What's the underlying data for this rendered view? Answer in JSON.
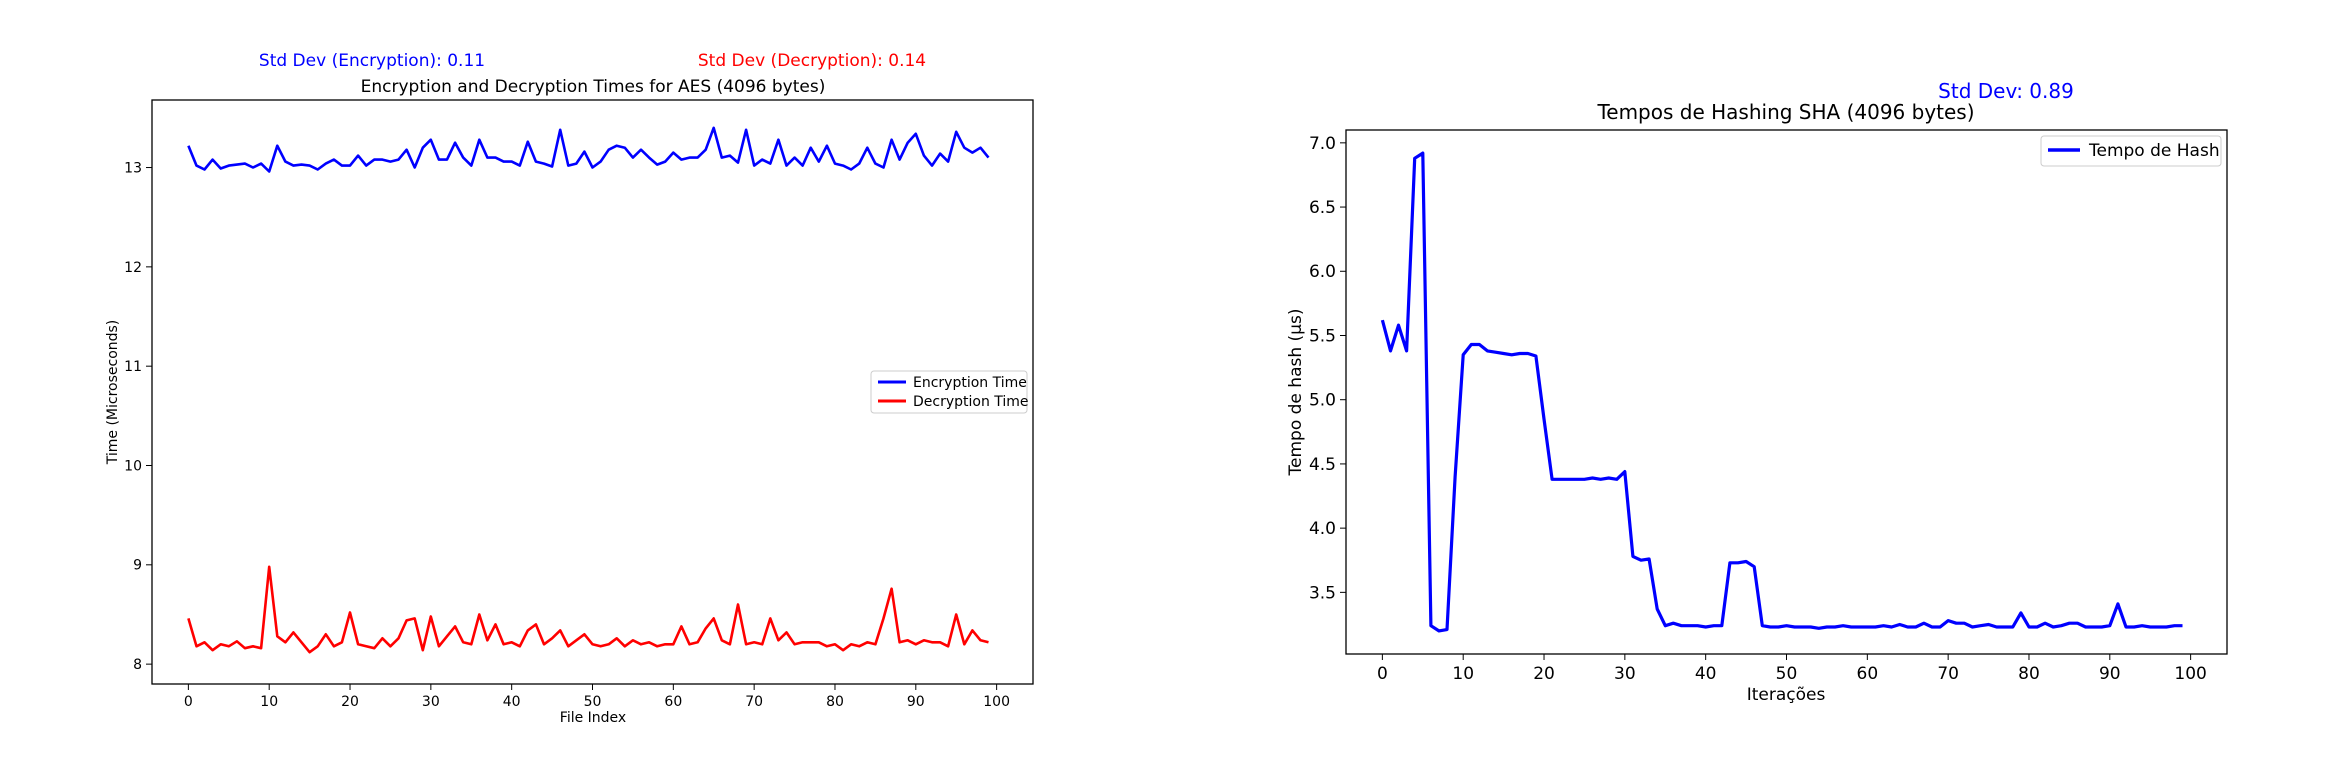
{
  "chart_data": [
    {
      "type": "line",
      "title": "Encryption and Decryption Times for AES (4096 bytes)",
      "annotations": [
        {
          "text": "Std Dev (Encryption): 0.11",
          "color": "#0000ff"
        },
        {
          "text": "Std Dev (Decryption): 0.14",
          "color": "#ff0000"
        }
      ],
      "xlabel": "File Index",
      "ylabel": "Time (Microseconds)",
      "xlim": [
        -4.5,
        104.5
      ],
      "ylim": [
        7.8,
        13.68
      ],
      "xticks": [
        0,
        10,
        20,
        30,
        40,
        50,
        60,
        70,
        80,
        90,
        100
      ],
      "yticks": [
        8,
        9,
        10,
        11,
        12,
        13
      ],
      "grid": false,
      "legend": "center-right",
      "x": [
        0,
        1,
        2,
        3,
        4,
        5,
        6,
        7,
        8,
        9,
        10,
        11,
        12,
        13,
        14,
        15,
        16,
        17,
        18,
        19,
        20,
        21,
        22,
        23,
        24,
        25,
        26,
        27,
        28,
        29,
        30,
        31,
        32,
        33,
        34,
        35,
        36,
        37,
        38,
        39,
        40,
        41,
        42,
        43,
        44,
        45,
        46,
        47,
        48,
        49,
        50,
        51,
        52,
        53,
        54,
        55,
        56,
        57,
        58,
        59,
        60,
        61,
        62,
        63,
        64,
        65,
        66,
        67,
        68,
        69,
        70,
        71,
        72,
        73,
        74,
        75,
        76,
        77,
        78,
        79,
        80,
        81,
        82,
        83,
        84,
        85,
        86,
        87,
        88,
        89,
        90,
        91,
        92,
        93,
        94,
        95,
        96,
        97,
        98,
        99
      ],
      "series": [
        {
          "name": "Encryption Time",
          "color": "#0000ff",
          "values": [
            13.22,
            13.02,
            12.98,
            13.08,
            12.99,
            13.02,
            13.03,
            13.04,
            13.0,
            13.04,
            12.96,
            13.22,
            13.06,
            13.02,
            13.03,
            13.02,
            12.98,
            13.04,
            13.08,
            13.02,
            13.02,
            13.12,
            13.02,
            13.08,
            13.08,
            13.06,
            13.08,
            13.18,
            13.0,
            13.2,
            13.28,
            13.08,
            13.08,
            13.25,
            13.1,
            13.02,
            13.28,
            13.1,
            13.1,
            13.06,
            13.06,
            13.02,
            13.26,
            13.06,
            13.04,
            13.01,
            13.38,
            13.02,
            13.04,
            13.16,
            13.0,
            13.06,
            13.18,
            13.22,
            13.2,
            13.1,
            13.18,
            13.1,
            13.03,
            13.06,
            13.15,
            13.08,
            13.1,
            13.1,
            13.18,
            13.4,
            13.1,
            13.12,
            13.05,
            13.38,
            13.02,
            13.08,
            13.04,
            13.28,
            13.02,
            13.1,
            13.02,
            13.2,
            13.06,
            13.22,
            13.04,
            13.02,
            12.98,
            13.04,
            13.2,
            13.04,
            13.0,
            13.28,
            13.08,
            13.25,
            13.34,
            13.12,
            13.02,
            13.14,
            13.06,
            13.36,
            13.2,
            13.15,
            13.2,
            13.1
          ]
        },
        {
          "name": "Decryption Time",
          "color": "#ff0000",
          "values": [
            8.46,
            8.18,
            8.22,
            8.14,
            8.2,
            8.18,
            8.23,
            8.16,
            8.18,
            8.16,
            8.98,
            8.28,
            8.22,
            8.32,
            8.22,
            8.12,
            8.18,
            8.3,
            8.18,
            8.22,
            8.52,
            8.2,
            8.18,
            8.16,
            8.26,
            8.18,
            8.26,
            8.44,
            8.46,
            8.14,
            8.48,
            8.18,
            8.28,
            8.38,
            8.22,
            8.2,
            8.5,
            8.24,
            8.4,
            8.2,
            8.22,
            8.18,
            8.34,
            8.4,
            8.2,
            8.26,
            8.34,
            8.18,
            8.24,
            8.3,
            8.2,
            8.18,
            8.2,
            8.26,
            8.18,
            8.24,
            8.2,
            8.22,
            8.18,
            8.2,
            8.2,
            8.38,
            8.2,
            8.22,
            8.36,
            8.46,
            8.24,
            8.2,
            8.6,
            8.2,
            8.22,
            8.2,
            8.46,
            8.24,
            8.32,
            8.2,
            8.22,
            8.22,
            8.22,
            8.18,
            8.2,
            8.14,
            8.2,
            8.18,
            8.22,
            8.2,
            8.46,
            8.76,
            8.22,
            8.24,
            8.2,
            8.24,
            8.22,
            8.22,
            8.18,
            8.5,
            8.2,
            8.34,
            8.24,
            8.22
          ]
        }
      ]
    },
    {
      "type": "line",
      "title": "Tempos de Hashing SHA (4096 bytes)",
      "annotations": [
        {
          "text": "Std Dev: 0.89",
          "color": "#0000ff"
        }
      ],
      "xlabel": "Iterações",
      "ylabel": "Tempo de hash (µs)",
      "xlim": [
        -4.5,
        104.5
      ],
      "ylim": [
        3.02,
        7.1
      ],
      "xticks": [
        0,
        10,
        20,
        30,
        40,
        50,
        60,
        70,
        80,
        90,
        100
      ],
      "yticks": [
        3.5,
        4.0,
        4.5,
        5.0,
        5.5,
        6.0,
        6.5,
        7.0
      ],
      "grid": false,
      "legend": "top-right",
      "x": [
        0,
        1,
        2,
        3,
        4,
        5,
        6,
        7,
        8,
        9,
        10,
        11,
        12,
        13,
        14,
        15,
        16,
        17,
        18,
        19,
        20,
        21,
        22,
        23,
        24,
        25,
        26,
        27,
        28,
        29,
        30,
        31,
        32,
        33,
        34,
        35,
        36,
        37,
        38,
        39,
        40,
        41,
        42,
        43,
        44,
        45,
        46,
        47,
        48,
        49,
        50,
        51,
        52,
        53,
        54,
        55,
        56,
        57,
        58,
        59,
        60,
        61,
        62,
        63,
        64,
        65,
        66,
        67,
        68,
        69,
        70,
        71,
        72,
        73,
        74,
        75,
        76,
        77,
        78,
        79,
        80,
        81,
        82,
        83,
        84,
        85,
        86,
        87,
        88,
        89,
        90,
        91,
        92,
        93,
        94,
        95,
        96,
        97,
        98,
        99
      ],
      "series": [
        {
          "name": "Tempo de Hash",
          "color": "#0000ff",
          "values": [
            5.62,
            5.38,
            5.58,
            5.38,
            6.88,
            6.92,
            3.24,
            3.2,
            3.21,
            4.4,
            5.35,
            5.43,
            5.43,
            5.38,
            5.37,
            5.36,
            5.35,
            5.36,
            5.36,
            5.34,
            4.85,
            4.38,
            4.38,
            4.38,
            4.38,
            4.38,
            4.39,
            4.38,
            4.39,
            4.38,
            4.44,
            3.78,
            3.75,
            3.76,
            3.37,
            3.24,
            3.26,
            3.24,
            3.24,
            3.24,
            3.23,
            3.24,
            3.24,
            3.73,
            3.73,
            3.74,
            3.7,
            3.24,
            3.23,
            3.23,
            3.24,
            3.23,
            3.23,
            3.23,
            3.22,
            3.23,
            3.23,
            3.24,
            3.23,
            3.23,
            3.23,
            3.23,
            3.24,
            3.23,
            3.25,
            3.23,
            3.23,
            3.26,
            3.23,
            3.23,
            3.28,
            3.26,
            3.26,
            3.23,
            3.24,
            3.25,
            3.23,
            3.23,
            3.23,
            3.34,
            3.23,
            3.23,
            3.26,
            3.23,
            3.24,
            3.26,
            3.26,
            3.23,
            3.23,
            3.23,
            3.24,
            3.41,
            3.23,
            3.23,
            3.24,
            3.23,
            3.23,
            3.23,
            3.24,
            3.24
          ]
        }
      ]
    }
  ]
}
